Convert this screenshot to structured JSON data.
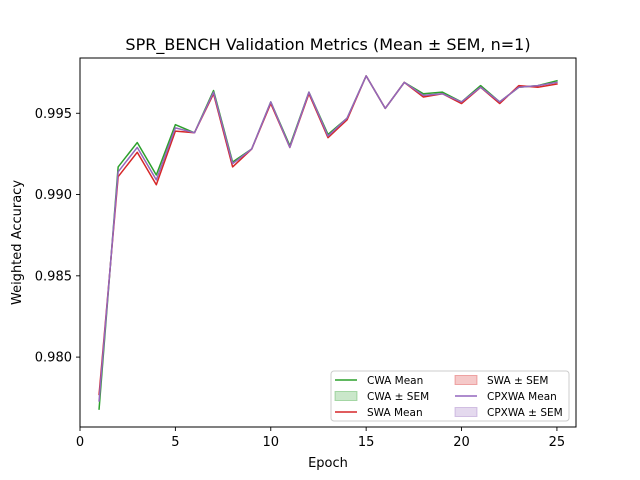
{
  "chart_data": {
    "type": "line",
    "title": "SPR_BENCH Validation Metrics (Mean ± SEM, n=1)",
    "xlabel": "Epoch",
    "ylabel": "Weighted Accuracy",
    "xlim": [
      0,
      26
    ],
    "ylim": [
      0.9757,
      0.9984
    ],
    "x_ticks": [
      0,
      5,
      10,
      15,
      20,
      25
    ],
    "y_ticks": [
      0.98,
      0.985,
      0.99,
      0.995
    ],
    "x_tick_labels": [
      "0",
      "5",
      "10",
      "15",
      "20",
      "25"
    ],
    "y_tick_labels": [
      "0.980",
      "0.985",
      "0.990",
      "0.995"
    ],
    "grid": false,
    "legend_position": "lower-right",
    "legend_columns": 2,
    "x": [
      1,
      2,
      3,
      4,
      5,
      6,
      7,
      8,
      9,
      10,
      11,
      12,
      13,
      14,
      15,
      16,
      17,
      18,
      19,
      20,
      21,
      22,
      23,
      24,
      25
    ],
    "series": [
      {
        "name": "CWA Mean",
        "color": "#2ca02c",
        "values": [
          0.9768,
          0.9917,
          0.9932,
          0.9912,
          0.9943,
          0.9938,
          0.9964,
          0.992,
          0.9928,
          0.9957,
          0.993,
          0.9963,
          0.9937,
          0.9947,
          0.9973,
          0.9953,
          0.9969,
          0.9962,
          0.9963,
          0.9957,
          0.9967,
          0.9957,
          0.9966,
          0.9967,
          0.997
        ]
      },
      {
        "name": "SWA Mean",
        "color": "#d62728",
        "values": [
          0.9777,
          0.9911,
          0.9926,
          0.9906,
          0.9939,
          0.9938,
          0.9962,
          0.9917,
          0.9928,
          0.9956,
          0.9929,
          0.9962,
          0.9935,
          0.9946,
          0.9973,
          0.9953,
          0.9969,
          0.996,
          0.9962,
          0.9956,
          0.9966,
          0.9956,
          0.9967,
          0.9966,
          0.9968
        ]
      },
      {
        "name": "CPXWA Mean",
        "color": "#9467bd",
        "values": [
          0.9773,
          0.9914,
          0.9929,
          0.9909,
          0.9941,
          0.9938,
          0.9963,
          0.9919,
          0.9928,
          0.9957,
          0.9929,
          0.9963,
          0.9936,
          0.9947,
          0.9973,
          0.9953,
          0.9969,
          0.9961,
          0.9962,
          0.9957,
          0.9966,
          0.9957,
          0.9966,
          0.9967,
          0.9969
        ]
      }
    ],
    "legend": [
      {
        "label": "CWA Mean",
        "kind": "line",
        "color": "#2ca02c"
      },
      {
        "label": "SWA ± SEM",
        "kind": "band",
        "color": "#d62728"
      },
      {
        "label": "CWA ± SEM",
        "kind": "band",
        "color": "#2ca02c"
      },
      {
        "label": "CPXWA Mean",
        "kind": "line",
        "color": "#9467bd"
      },
      {
        "label": "SWA Mean",
        "kind": "line",
        "color": "#d62728"
      },
      {
        "label": "CPXWA ± SEM",
        "kind": "band",
        "color": "#9467bd"
      }
    ]
  }
}
